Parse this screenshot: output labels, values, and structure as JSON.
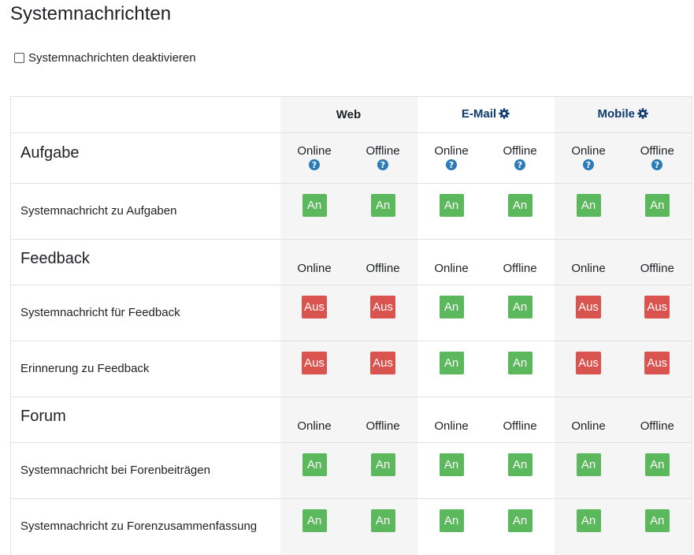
{
  "page": {
    "title": "Systemnachrichten",
    "disable_label": "Systemnachrichten deaktivieren"
  },
  "processors": [
    {
      "name": "Web",
      "has_settings": false
    },
    {
      "name": "E-Mail",
      "has_settings": true
    },
    {
      "name": "Mobile",
      "has_settings": true
    }
  ],
  "states": {
    "online": "Online",
    "offline": "Offline"
  },
  "toggle_labels": {
    "on": "An",
    "off": "Aus"
  },
  "colors": {
    "on": "#5cb85c",
    "off": "#d9534f",
    "processor_link": "#0f3a6e",
    "help_icon": "#2b7bb9"
  },
  "sections": [
    {
      "name": "Aufgabe",
      "show_help": true,
      "rows": [
        {
          "label": "Systemnachricht zu Aufgaben",
          "values": [
            "on",
            "on",
            "on",
            "on",
            "on",
            "on"
          ]
        }
      ]
    },
    {
      "name": "Feedback",
      "show_help": false,
      "rows": [
        {
          "label": "Systemnachricht für Feedback",
          "values": [
            "off",
            "off",
            "on",
            "on",
            "off",
            "off"
          ]
        },
        {
          "label": "Erinnerung zu Feedback",
          "values": [
            "off",
            "off",
            "on",
            "on",
            "off",
            "off"
          ]
        }
      ]
    },
    {
      "name": "Forum",
      "show_help": false,
      "rows": [
        {
          "label": "Systemnachricht bei Forenbeiträgen",
          "values": [
            "on",
            "on",
            "on",
            "on",
            "on",
            "on"
          ]
        },
        {
          "label": "Systemnachricht zu Forenzusammenfassung",
          "values": [
            "on",
            "on",
            "on",
            "on",
            "on",
            "on"
          ]
        }
      ]
    }
  ]
}
